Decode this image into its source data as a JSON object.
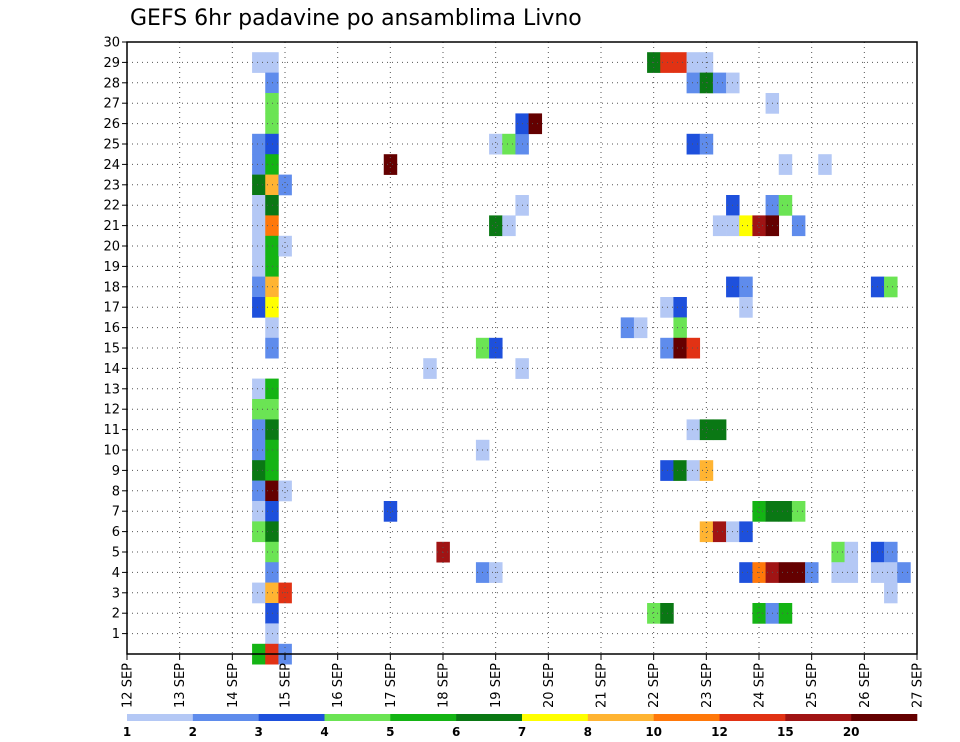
{
  "chart_data": {
    "type": "heatmap",
    "title": "GEFS 6hr padavine po ansamblima Livno",
    "xlabel": "",
    "ylabel": "",
    "x_tick_labels": [
      "12 SEP",
      "13 SEP",
      "14 SEP",
      "15 SEP",
      "16 SEP",
      "17 SEP",
      "18 SEP",
      "19 SEP",
      "20 SEP",
      "21 SEP",
      "22 SEP",
      "23 SEP",
      "24 SEP",
      "25 SEP",
      "26 SEP",
      "27 SEP"
    ],
    "x_range_days": [
      12,
      27
    ],
    "y_tick_labels": [
      1,
      2,
      3,
      4,
      5,
      6,
      7,
      8,
      9,
      10,
      11,
      12,
      13,
      14,
      15,
      16,
      17,
      18,
      19,
      20,
      21,
      22,
      23,
      24,
      25,
      26,
      27,
      28,
      29,
      30
    ],
    "y_range": [
      0,
      30
    ],
    "grid": true,
    "colorbar": {
      "labels": [
        "1",
        "2",
        "3",
        "4",
        "5",
        "6",
        "7",
        "8",
        "10",
        "12",
        "15",
        "20"
      ],
      "colors": [
        "#b4c8f5",
        "#5f8cec",
        "#1e50dc",
        "#6be454",
        "#14b414",
        "#0a7814",
        "#ffff00",
        "#ffb432",
        "#ff780a",
        "#e13214",
        "#a01414",
        "#640000"
      ]
    },
    "cells": [
      {
        "d": 14.5,
        "m": 29,
        "c": 0
      },
      {
        "d": 14.75,
        "m": 29,
        "c": 0
      },
      {
        "d": 14.75,
        "m": 28,
        "c": 1
      },
      {
        "d": 14.75,
        "m": 27,
        "c": 3
      },
      {
        "d": 14.75,
        "m": 26,
        "c": 3
      },
      {
        "d": 14.5,
        "m": 25,
        "c": 1
      },
      {
        "d": 14.75,
        "m": 25,
        "c": 2
      },
      {
        "d": 14.5,
        "m": 24,
        "c": 1
      },
      {
        "d": 14.75,
        "m": 24,
        "c": 4
      },
      {
        "d": 14.5,
        "m": 23,
        "c": 5
      },
      {
        "d": 14.75,
        "m": 23,
        "c": 7
      },
      {
        "d": 15.0,
        "m": 23,
        "c": 1
      },
      {
        "d": 14.5,
        "m": 22,
        "c": 0
      },
      {
        "d": 14.75,
        "m": 22,
        "c": 5
      },
      {
        "d": 14.5,
        "m": 21,
        "c": 0
      },
      {
        "d": 14.75,
        "m": 21,
        "c": 8
      },
      {
        "d": 14.5,
        "m": 20,
        "c": 0
      },
      {
        "d": 14.75,
        "m": 20,
        "c": 4
      },
      {
        "d": 15.0,
        "m": 20,
        "c": 0
      },
      {
        "d": 14.5,
        "m": 19,
        "c": 0
      },
      {
        "d": 14.75,
        "m": 19,
        "c": 4
      },
      {
        "d": 14.5,
        "m": 18,
        "c": 1
      },
      {
        "d": 14.75,
        "m": 18,
        "c": 7
      },
      {
        "d": 14.5,
        "m": 17,
        "c": 2
      },
      {
        "d": 14.75,
        "m": 17,
        "c": 6
      },
      {
        "d": 14.75,
        "m": 16,
        "c": 0
      },
      {
        "d": 14.75,
        "m": 15,
        "c": 1
      },
      {
        "d": 14.5,
        "m": 13,
        "c": 0
      },
      {
        "d": 14.75,
        "m": 13,
        "c": 4
      },
      {
        "d": 14.5,
        "m": 12,
        "c": 3
      },
      {
        "d": 14.75,
        "m": 12,
        "c": 3
      },
      {
        "d": 14.5,
        "m": 11,
        "c": 1
      },
      {
        "d": 14.75,
        "m": 11,
        "c": 5
      },
      {
        "d": 14.5,
        "m": 10,
        "c": 1
      },
      {
        "d": 14.75,
        "m": 10,
        "c": 4
      },
      {
        "d": 14.5,
        "m": 9,
        "c": 5
      },
      {
        "d": 14.75,
        "m": 9,
        "c": 4
      },
      {
        "d": 14.5,
        "m": 8,
        "c": 1
      },
      {
        "d": 14.75,
        "m": 8,
        "c": 11
      },
      {
        "d": 15.0,
        "m": 8,
        "c": 0
      },
      {
        "d": 14.5,
        "m": 7,
        "c": 0
      },
      {
        "d": 14.75,
        "m": 7,
        "c": 2
      },
      {
        "d": 14.5,
        "m": 6,
        "c": 3
      },
      {
        "d": 14.75,
        "m": 6,
        "c": 5
      },
      {
        "d": 14.75,
        "m": 5,
        "c": 3
      },
      {
        "d": 14.75,
        "m": 4,
        "c": 1
      },
      {
        "d": 14.5,
        "m": 3,
        "c": 0
      },
      {
        "d": 14.75,
        "m": 3,
        "c": 7
      },
      {
        "d": 15.0,
        "m": 3,
        "c": 9
      },
      {
        "d": 14.75,
        "m": 2,
        "c": 2
      },
      {
        "d": 14.75,
        "m": 1,
        "c": 0
      },
      {
        "d": 14.5,
        "m": 0,
        "c": 4
      },
      {
        "d": 14.75,
        "m": 0,
        "c": 9
      },
      {
        "d": 15.0,
        "m": 0,
        "c": 1
      },
      {
        "d": 17.0,
        "m": 24,
        "c": 11
      },
      {
        "d": 17.0,
        "m": 7,
        "c": 2
      },
      {
        "d": 17.75,
        "m": 14,
        "c": 0
      },
      {
        "d": 18.0,
        "m": 5,
        "c": 10
      },
      {
        "d": 18.75,
        "m": 10,
        "c": 0
      },
      {
        "d": 19.0,
        "m": 25,
        "c": 0
      },
      {
        "d": 19.25,
        "m": 25,
        "c": 3
      },
      {
        "d": 19.5,
        "m": 25,
        "c": 1
      },
      {
        "d": 19.0,
        "m": 21,
        "c": 5
      },
      {
        "d": 19.25,
        "m": 21,
        "c": 0
      },
      {
        "d": 19.5,
        "m": 22,
        "c": 0
      },
      {
        "d": 18.75,
        "m": 15,
        "c": 3
      },
      {
        "d": 19.0,
        "m": 15,
        "c": 2
      },
      {
        "d": 19.5,
        "m": 14,
        "c": 0
      },
      {
        "d": 18.75,
        "m": 4,
        "c": 1
      },
      {
        "d": 19.0,
        "m": 4,
        "c": 0
      },
      {
        "d": 19.5,
        "m": 26,
        "c": 2
      },
      {
        "d": 19.75,
        "m": 26,
        "c": 11
      },
      {
        "d": 21.5,
        "m": 16,
        "c": 1
      },
      {
        "d": 21.75,
        "m": 16,
        "c": 0
      },
      {
        "d": 22.0,
        "m": 29,
        "c": 5
      },
      {
        "d": 22.25,
        "m": 29,
        "c": 9
      },
      {
        "d": 22.5,
        "m": 29,
        "c": 9
      },
      {
        "d": 22.75,
        "m": 29,
        "c": 0
      },
      {
        "d": 23.0,
        "m": 29,
        "c": 0
      },
      {
        "d": 22.75,
        "m": 28,
        "c": 1
      },
      {
        "d": 23.0,
        "m": 28,
        "c": 5
      },
      {
        "d": 23.25,
        "m": 28,
        "c": 1
      },
      {
        "d": 23.5,
        "m": 28,
        "c": 0
      },
      {
        "d": 22.75,
        "m": 25,
        "c": 2
      },
      {
        "d": 23.0,
        "m": 25,
        "c": 1
      },
      {
        "d": 22.25,
        "m": 17,
        "c": 0
      },
      {
        "d": 22.5,
        "m": 17,
        "c": 2
      },
      {
        "d": 22.5,
        "m": 16,
        "c": 3
      },
      {
        "d": 22.25,
        "m": 15,
        "c": 1
      },
      {
        "d": 22.5,
        "m": 15,
        "c": 11
      },
      {
        "d": 22.75,
        "m": 15,
        "c": 9
      },
      {
        "d": 22.75,
        "m": 11,
        "c": 0
      },
      {
        "d": 23.0,
        "m": 11,
        "c": 5
      },
      {
        "d": 23.25,
        "m": 11,
        "c": 5
      },
      {
        "d": 22.25,
        "m": 9,
        "c": 2
      },
      {
        "d": 22.5,
        "m": 9,
        "c": 5
      },
      {
        "d": 22.75,
        "m": 9,
        "c": 0
      },
      {
        "d": 23.0,
        "m": 9,
        "c": 7
      },
      {
        "d": 23.0,
        "m": 6,
        "c": 7
      },
      {
        "d": 23.25,
        "m": 6,
        "c": 10
      },
      {
        "d": 23.5,
        "m": 6,
        "c": 0
      },
      {
        "d": 23.75,
        "m": 6,
        "c": 2
      },
      {
        "d": 22.0,
        "m": 2,
        "c": 3
      },
      {
        "d": 22.25,
        "m": 2,
        "c": 5
      },
      {
        "d": 24.25,
        "m": 27,
        "c": 0
      },
      {
        "d": 24.5,
        "m": 24,
        "c": 0
      },
      {
        "d": 25.25,
        "m": 24,
        "c": 0
      },
      {
        "d": 23.5,
        "m": 22,
        "c": 2
      },
      {
        "d": 24.25,
        "m": 22,
        "c": 1
      },
      {
        "d": 24.5,
        "m": 22,
        "c": 3
      },
      {
        "d": 23.25,
        "m": 21,
        "c": 0
      },
      {
        "d": 23.5,
        "m": 21,
        "c": 0
      },
      {
        "d": 23.75,
        "m": 21,
        "c": 6
      },
      {
        "d": 24.0,
        "m": 21,
        "c": 10
      },
      {
        "d": 24.25,
        "m": 21,
        "c": 11
      },
      {
        "d": 24.75,
        "m": 21,
        "c": 1
      },
      {
        "d": 23.5,
        "m": 18,
        "c": 2
      },
      {
        "d": 23.75,
        "m": 18,
        "c": 1
      },
      {
        "d": 23.75,
        "m": 17,
        "c": 0
      },
      {
        "d": 24.0,
        "m": 7,
        "c": 4
      },
      {
        "d": 24.25,
        "m": 7,
        "c": 5
      },
      {
        "d": 24.5,
        "m": 7,
        "c": 5
      },
      {
        "d": 24.75,
        "m": 7,
        "c": 3
      },
      {
        "d": 23.75,
        "m": 4,
        "c": 2
      },
      {
        "d": 24.0,
        "m": 4,
        "c": 8
      },
      {
        "d": 24.25,
        "m": 4,
        "c": 10
      },
      {
        "d": 24.5,
        "m": 4,
        "c": 11
      },
      {
        "d": 24.75,
        "m": 4,
        "c": 11
      },
      {
        "d": 25.0,
        "m": 4,
        "c": 1
      },
      {
        "d": 24.0,
        "m": 2,
        "c": 4
      },
      {
        "d": 24.25,
        "m": 2,
        "c": 1
      },
      {
        "d": 24.5,
        "m": 2,
        "c": 4
      },
      {
        "d": 25.5,
        "m": 5,
        "c": 3
      },
      {
        "d": 25.75,
        "m": 5,
        "c": 0
      },
      {
        "d": 25.5,
        "m": 4,
        "c": 0
      },
      {
        "d": 25.75,
        "m": 4,
        "c": 0
      },
      {
        "d": 26.25,
        "m": 18,
        "c": 2
      },
      {
        "d": 26.5,
        "m": 18,
        "c": 3
      },
      {
        "d": 26.25,
        "m": 5,
        "c": 2
      },
      {
        "d": 26.5,
        "m": 5,
        "c": 1
      },
      {
        "d": 26.25,
        "m": 4,
        "c": 0
      },
      {
        "d": 26.5,
        "m": 4,
        "c": 0
      },
      {
        "d": 26.75,
        "m": 4,
        "c": 1
      },
      {
        "d": 26.5,
        "m": 3,
        "c": 0
      }
    ]
  }
}
